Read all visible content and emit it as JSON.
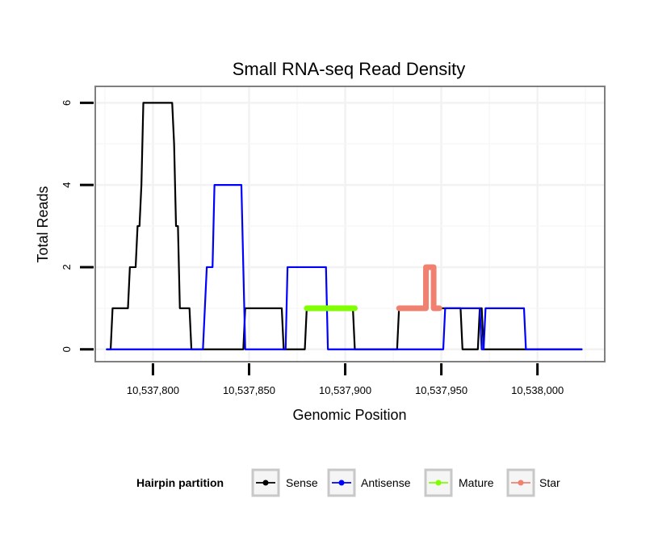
{
  "chart_data": {
    "type": "line",
    "title": "Small RNA-seq Read Density",
    "xlabel": "Genomic Position",
    "ylabel": "Total Reads",
    "xlim": [
      10537770,
      10538035
    ],
    "ylim": [
      -0.3,
      6.4
    ],
    "x_ticks": [
      10537800,
      10537850,
      10537900,
      10537950,
      10538000
    ],
    "x_tick_labels": [
      "10,537,800",
      "10,537,850",
      "10,537,900",
      "10,537,950",
      "10,538,000"
    ],
    "y_ticks": [
      0,
      2,
      4,
      6
    ],
    "y_tick_labels": [
      "0",
      "2",
      "4",
      "6"
    ],
    "grid": true,
    "legend": {
      "title": "Hairpin partition",
      "position": "bottom",
      "entries": [
        "Sense",
        "Antisense",
        "Mature",
        "Star"
      ]
    },
    "series": [
      {
        "name": "Sense",
        "color": "#000000",
        "width": 2.2,
        "points": [
          [
            10537776,
            0
          ],
          [
            10537778,
            0
          ],
          [
            10537779,
            1
          ],
          [
            10537787,
            1
          ],
          [
            10537788,
            2
          ],
          [
            10537791,
            2
          ],
          [
            10537792,
            3
          ],
          [
            10537793,
            3
          ],
          [
            10537794,
            4
          ],
          [
            10537795,
            6
          ],
          [
            10537810,
            6
          ],
          [
            10537811,
            5
          ],
          [
            10537812,
            3
          ],
          [
            10537813,
            3
          ],
          [
            10537814,
            1
          ],
          [
            10537819,
            1
          ],
          [
            10537820,
            0
          ],
          [
            10537847,
            0
          ],
          [
            10537848,
            1
          ],
          [
            10537867,
            1
          ],
          [
            10537868,
            0
          ],
          [
            10537879,
            0
          ],
          [
            10537880,
            1
          ],
          [
            10537904,
            1
          ],
          [
            10537905,
            0
          ],
          [
            10537927,
            0
          ],
          [
            10537928,
            1
          ],
          [
            10537941,
            1
          ],
          [
            10537942,
            2
          ],
          [
            10537946,
            2
          ],
          [
            10537947,
            1
          ],
          [
            10537960,
            1
          ],
          [
            10537961,
            0
          ],
          [
            10537969,
            0
          ],
          [
            10537970,
            1
          ],
          [
            10537971,
            1
          ],
          [
            10537972,
            0
          ],
          [
            10538023,
            0
          ]
        ]
      },
      {
        "name": "Antisense",
        "color": "#0000ff",
        "width": 2.2,
        "points": [
          [
            10537776,
            0
          ],
          [
            10537826,
            0
          ],
          [
            10537828,
            2
          ],
          [
            10537831,
            2
          ],
          [
            10537832,
            4
          ],
          [
            10537846,
            4
          ],
          [
            10537848,
            0
          ],
          [
            10537869,
            0
          ],
          [
            10537870,
            2
          ],
          [
            10537890,
            2
          ],
          [
            10537891,
            0
          ],
          [
            10537951,
            0
          ],
          [
            10537952,
            1
          ],
          [
            10537970,
            1
          ],
          [
            10537971,
            0
          ],
          [
            10537972,
            0
          ],
          [
            10537973,
            1
          ],
          [
            10537993,
            1
          ],
          [
            10537994,
            0
          ],
          [
            10538023,
            0
          ]
        ]
      },
      {
        "name": "Mature",
        "color": "#7fff00",
        "width": 7,
        "points": [
          [
            10537880,
            1
          ],
          [
            10537905,
            1
          ]
        ]
      },
      {
        "name": "Star",
        "color": "#f08070",
        "width": 7,
        "points": [
          [
            10537928,
            1
          ],
          [
            10537942,
            1
          ],
          [
            10537942,
            2
          ],
          [
            10537946,
            2
          ],
          [
            10537946,
            1
          ],
          [
            10537949,
            1
          ]
        ]
      }
    ]
  }
}
